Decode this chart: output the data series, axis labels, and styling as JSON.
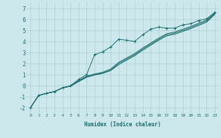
{
  "xlabel": "Humidex (Indice chaleur)",
  "bg_color": "#cce8ec",
  "grid_color": "#aacdd4",
  "line_color": "#1a6b6b",
  "xlim": [
    -0.5,
    23.5
  ],
  "ylim": [
    -2.5,
    7.5
  ],
  "yticks": [
    -2,
    -1,
    0,
    1,
    2,
    3,
    4,
    5,
    6,
    7
  ],
  "xticks": [
    0,
    1,
    2,
    3,
    4,
    5,
    6,
    7,
    8,
    9,
    10,
    11,
    12,
    13,
    14,
    15,
    16,
    17,
    18,
    19,
    20,
    21,
    22,
    23
  ],
  "lines": [
    {
      "x": [
        0,
        1,
        2,
        3,
        4,
        5,
        6,
        7,
        8,
        9,
        10,
        11,
        12,
        13,
        14,
        15,
        16,
        17,
        18,
        19,
        20,
        21,
        22,
        23
      ],
      "y": [
        -2.0,
        -0.9,
        -0.7,
        -0.55,
        -0.2,
        0.0,
        0.55,
        1.0,
        2.8,
        3.05,
        3.5,
        4.2,
        4.1,
        4.0,
        4.6,
        5.1,
        5.3,
        5.2,
        5.2,
        5.5,
        5.6,
        5.9,
        6.05,
        6.65
      ],
      "marker": "+"
    },
    {
      "x": [
        0,
        1,
        2,
        3,
        4,
        5,
        6,
        7,
        8,
        9,
        10,
        11,
        12,
        13,
        14,
        15,
        16,
        17,
        18,
        19,
        20,
        21,
        22,
        23
      ],
      "y": [
        -2.0,
        -0.9,
        -0.7,
        -0.55,
        -0.2,
        -0.05,
        0.45,
        0.85,
        1.05,
        1.2,
        1.5,
        2.1,
        2.5,
        2.9,
        3.4,
        3.85,
        4.3,
        4.7,
        4.85,
        5.1,
        5.35,
        5.65,
        5.95,
        6.55
      ],
      "marker": null
    },
    {
      "x": [
        0,
        1,
        2,
        3,
        4,
        5,
        6,
        7,
        8,
        9,
        10,
        11,
        12,
        13,
        14,
        15,
        16,
        17,
        18,
        19,
        20,
        21,
        22,
        23
      ],
      "y": [
        -2.0,
        -0.9,
        -0.7,
        -0.55,
        -0.2,
        -0.05,
        0.4,
        0.8,
        1.0,
        1.15,
        1.4,
        2.0,
        2.4,
        2.8,
        3.3,
        3.75,
        4.2,
        4.6,
        4.75,
        5.0,
        5.25,
        5.55,
        5.85,
        6.5
      ],
      "marker": null
    },
    {
      "x": [
        0,
        1,
        2,
        3,
        4,
        5,
        6,
        7,
        8,
        9,
        10,
        11,
        12,
        13,
        14,
        15,
        16,
        17,
        18,
        19,
        20,
        21,
        22,
        23
      ],
      "y": [
        -2.0,
        -0.9,
        -0.7,
        -0.55,
        -0.2,
        -0.05,
        0.35,
        0.75,
        0.95,
        1.1,
        1.35,
        1.9,
        2.3,
        2.7,
        3.2,
        3.65,
        4.1,
        4.5,
        4.65,
        4.9,
        5.15,
        5.45,
        5.75,
        6.45
      ],
      "marker": null
    }
  ]
}
